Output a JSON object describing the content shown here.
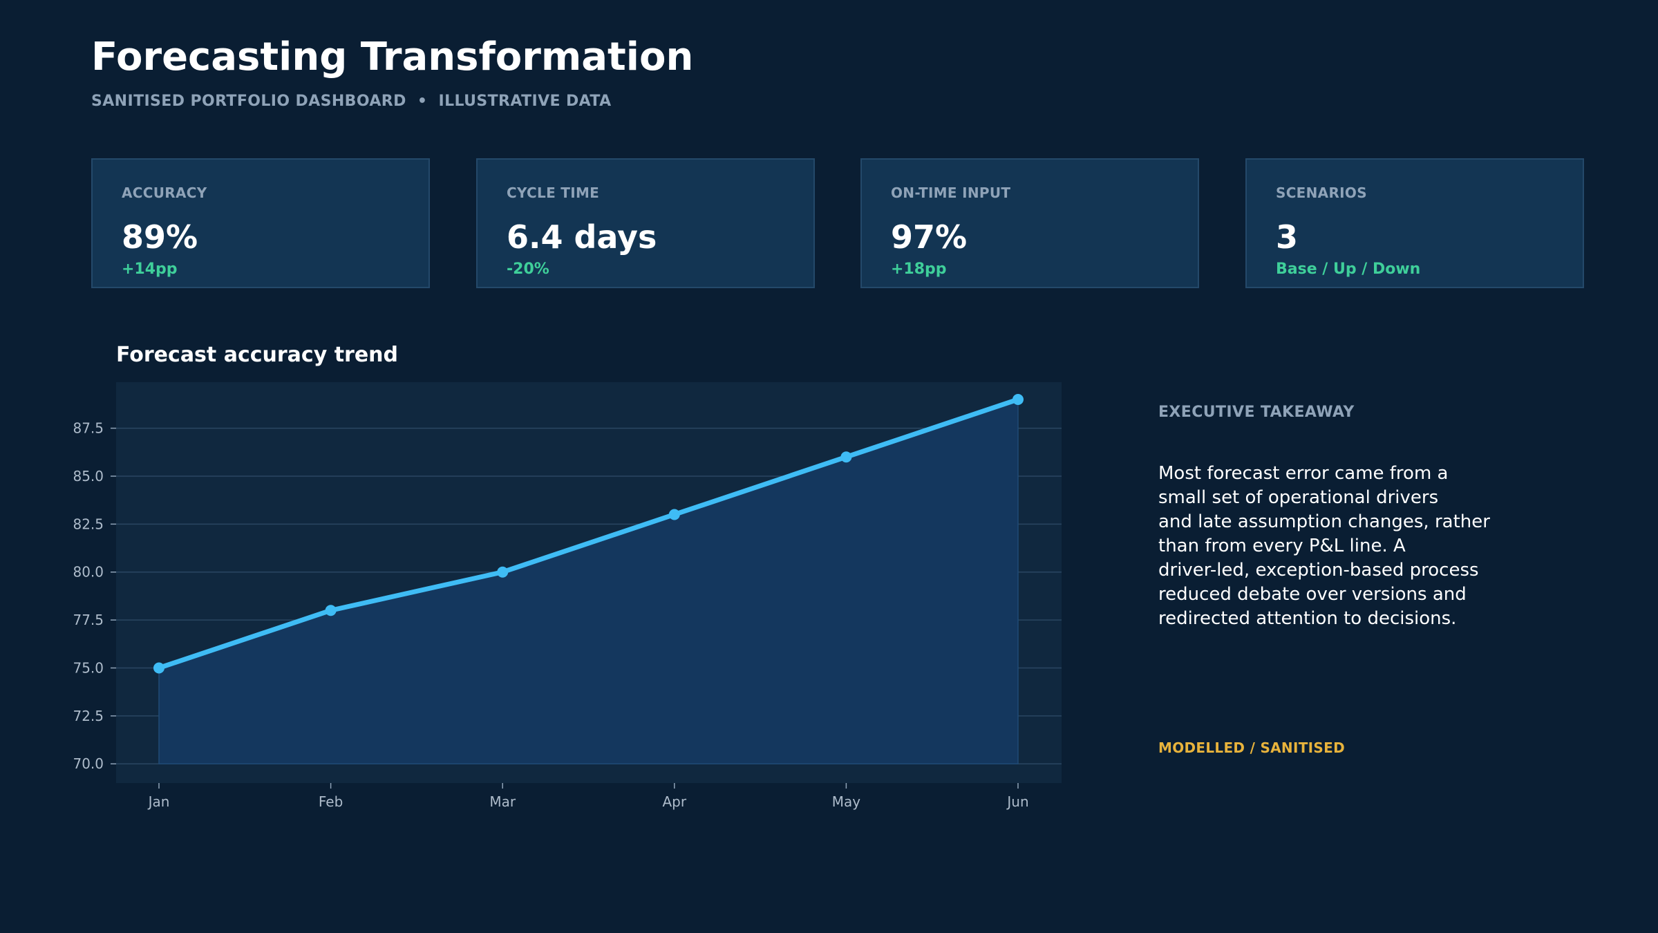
{
  "header": {
    "title": "Forecasting Transformation",
    "subtitle": "SANITISED PORTFOLIO DASHBOARD  •  ILLUSTRATIVE DATA"
  },
  "kpis": [
    {
      "label": "ACCURACY",
      "value": "89%",
      "delta": "+14pp"
    },
    {
      "label": "CYCLE TIME",
      "value": "6.4 days",
      "delta": "-20%"
    },
    {
      "label": "ON-TIME INPUT",
      "value": "97%",
      "delta": "+18pp"
    },
    {
      "label": "SCENARIOS",
      "value": "3",
      "delta": "Base / Up / Down"
    }
  ],
  "chart_data": {
    "type": "line",
    "title": "Forecast accuracy trend",
    "categories": [
      "Jan",
      "Feb",
      "Mar",
      "Apr",
      "May",
      "Jun"
    ],
    "values": [
      75,
      78,
      80,
      83,
      86,
      89
    ],
    "xlabel": "",
    "ylabel": "",
    "ylim": [
      69,
      89.9
    ],
    "yticks": [
      "70.0",
      "72.5",
      "75.0",
      "77.5",
      "80.0",
      "82.5",
      "85.0",
      "87.5"
    ],
    "grid": true,
    "fill": true,
    "line_color": "#3fbcf5",
    "fill_color": "#14375e"
  },
  "takeaway": {
    "label": "EXECUTIVE TAKEAWAY",
    "lines": [
      "Most forecast error came from a",
      "small set of operational drivers",
      "and late assumption changes, rather",
      "than from every P&L line. A",
      "driver-led, exception-based process",
      "reduced debate over versions and",
      "redirected attention to decisions."
    ]
  },
  "footnote": "MODELLED / SANITISED"
}
